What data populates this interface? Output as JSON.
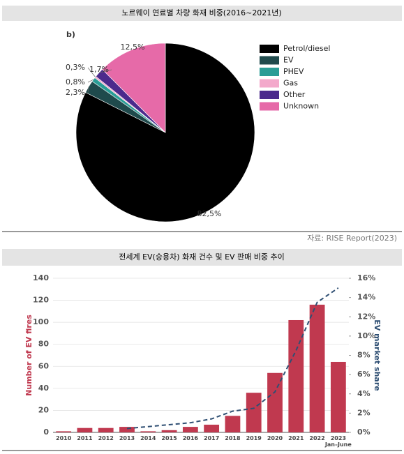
{
  "chart_data": [
    {
      "type": "pie",
      "title": "노르웨이 연료별 차량 화재 비중(2016~2021년)",
      "subtitle": "b)",
      "categories": [
        "Petrol/diesel",
        "EV",
        "PHEV",
        "Gas",
        "Other",
        "Unknown"
      ],
      "values": [
        82.5,
        2.3,
        0.8,
        0.3,
        1.7,
        12.5
      ],
      "value_labels": [
        "82,5%",
        "2,3%",
        "0,8%",
        "0,3%",
        "1,7%",
        "12,5%"
      ],
      "colors": [
        "#000000",
        "#1f4a4c",
        "#2a9d96",
        "#f3a9cb",
        "#4b2a8c",
        "#e66aa8"
      ],
      "legend": "right",
      "source": "자료: RISE Report(2023)"
    },
    {
      "type": "bar",
      "title": "전세계 EV(승용차) 화재 건수 및 EV 판매 비중 추이",
      "categories": [
        "2010",
        "2011",
        "2012",
        "2013",
        "2014",
        "2015",
        "2016",
        "2017",
        "2018",
        "2019",
        "2020",
        "2021",
        "2022",
        "2023\nJan–June"
      ],
      "series": [
        {
          "name": "Number of EV fires",
          "type": "bar",
          "color": "#c0394f",
          "values": [
            1,
            4,
            4,
            5,
            1,
            2,
            5,
            7,
            15,
            36,
            54,
            102,
            116,
            64
          ]
        },
        {
          "name": "EV market share",
          "type": "line",
          "axis": "y2",
          "color": "#2f4f73",
          "values": [
            null,
            null,
            null,
            0.4,
            0.6,
            0.8,
            1.0,
            1.4,
            2.2,
            2.5,
            4.2,
            8.5,
            13.5,
            15
          ]
        }
      ],
      "ylabel": "Number of EV fires",
      "y2label": "EV market share",
      "ylim": [
        0,
        140
      ],
      "yticks": [
        0,
        20,
        40,
        60,
        80,
        100,
        120,
        140
      ],
      "y2lim": [
        0,
        16
      ],
      "y2ticks": [
        {
          "value": 0,
          "label": "0%"
        },
        {
          "value": 2,
          "label": "2%"
        },
        {
          "value": 4,
          "label": "4%"
        },
        {
          "value": 6,
          "label": "6%"
        },
        {
          "value": 8,
          "label": "8%"
        },
        {
          "value": 10,
          "label": "10%"
        },
        {
          "value": 12,
          "label": "12%"
        },
        {
          "value": 14,
          "label": "14%"
        },
        {
          "value": 16,
          "label": "16%"
        }
      ],
      "grid": true
    }
  ]
}
